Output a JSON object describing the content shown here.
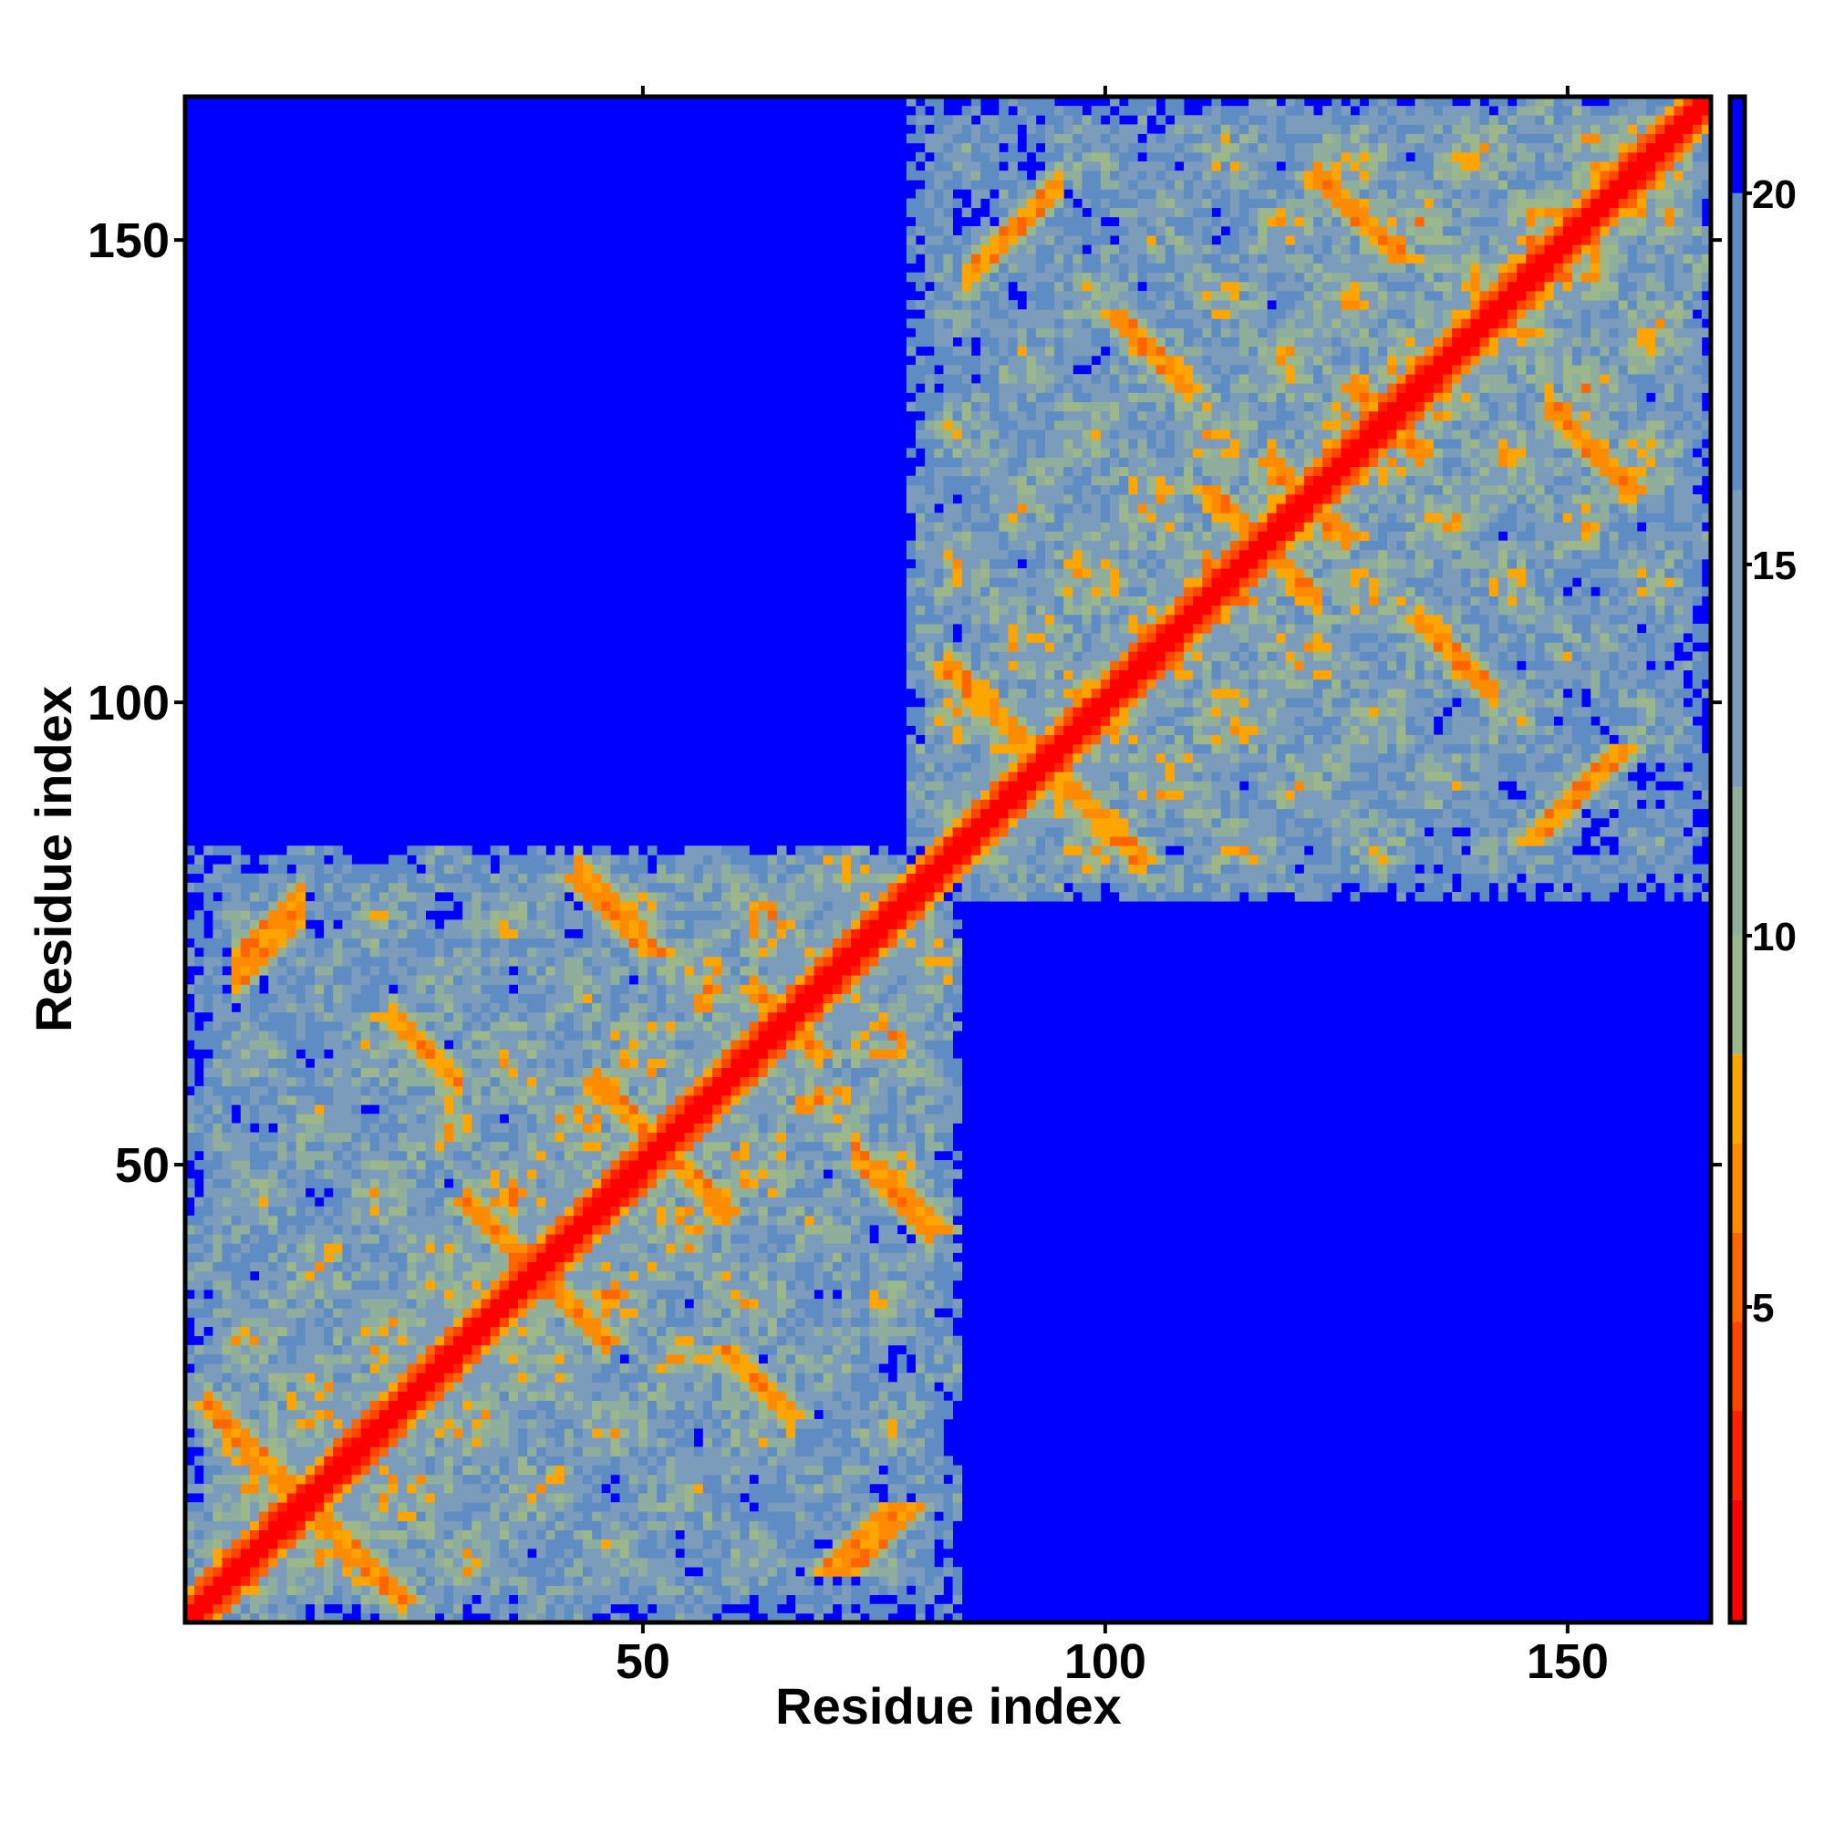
{
  "chart_data": {
    "type": "heatmap",
    "title": "",
    "xlabel": "Residue index",
    "ylabel": "Residue index",
    "n_residues": 165,
    "xlim": [
      0.5,
      165.5
    ],
    "ylim": [
      0.5,
      165.5
    ],
    "x_ticks": [
      50,
      100,
      150
    ],
    "y_ticks": [
      50,
      100,
      150
    ],
    "colorbar": {
      "range": [
        0.75,
        21.3
      ],
      "ticks": [
        5,
        10,
        15,
        20
      ],
      "stops": [
        {
          "max": 2.4,
          "color": "#ff0000"
        },
        {
          "max": 3.6,
          "color": "#ff2200"
        },
        {
          "max": 4.8,
          "color": "#ff4500"
        },
        {
          "max": 6.0,
          "color": "#ff6600"
        },
        {
          "max": 7.2,
          "color": "#ff8c00"
        },
        {
          "max": 8.4,
          "color": "#ffa500"
        },
        {
          "max": 10.0,
          "color": "#9cb78a"
        },
        {
          "max": 12.0,
          "color": "#8fae9c"
        },
        {
          "max": 16.0,
          "color": "#7b9cba"
        },
        {
          "max": 20.0,
          "color": "#5f8cc2"
        },
        {
          "max": 99,
          "color": "#0000ff"
        }
      ]
    },
    "domains": [
      [
        1,
        84
      ],
      [
        79,
        165
      ]
    ],
    "antiparallel_contacts": [
      {
        "sum": 27,
        "i_range": [
          3,
          24
        ]
      },
      {
        "sum": 89,
        "i_range": [
          23,
          30
        ]
      },
      {
        "sum": 125,
        "i_range": [
          43,
          50
        ]
      },
      {
        "sum": 104,
        "i_range": [
          45,
          59
        ]
      },
      {
        "sum": 131,
        "i_range": [
          62,
          69
        ]
      },
      {
        "sum": 124,
        "i_range": [
          73,
          81
        ]
      },
      {
        "sum": 89,
        "i_range": [
          60,
          66
        ]
      },
      {
        "sum": 77,
        "i_range": [
          31,
          46
        ]
      },
      {
        "sum": 187,
        "i_range": [
          83,
          104
        ]
      },
      {
        "sum": 280,
        "i_range": [
          123,
          130
        ]
      },
      {
        "sum": 243,
        "i_range": [
          102,
          109
        ]
      },
      {
        "sum": 244,
        "i_range": [
          118,
          126
        ]
      },
      {
        "sum": 261,
        "i_range": [
          127,
          134
        ]
      },
      {
        "sum": 280,
        "i_range": [
          148,
          157
        ]
      },
      {
        "sum": 243,
        "i_range": [
          134,
          142
        ]
      },
      {
        "sum": 234,
        "i_range": [
          115,
          123
        ]
      }
    ],
    "parallel_contacts": [
      {
        "diff": 66,
        "i_range": [
          6,
          13
        ]
      },
      {
        "diff": 64,
        "i_range": [
          6,
          13
        ]
      },
      {
        "diff": 61,
        "i_range": [
          85,
          92
        ]
      },
      {
        "diff": 61,
        "i_range": [
          86,
          95
        ]
      }
    ]
  }
}
